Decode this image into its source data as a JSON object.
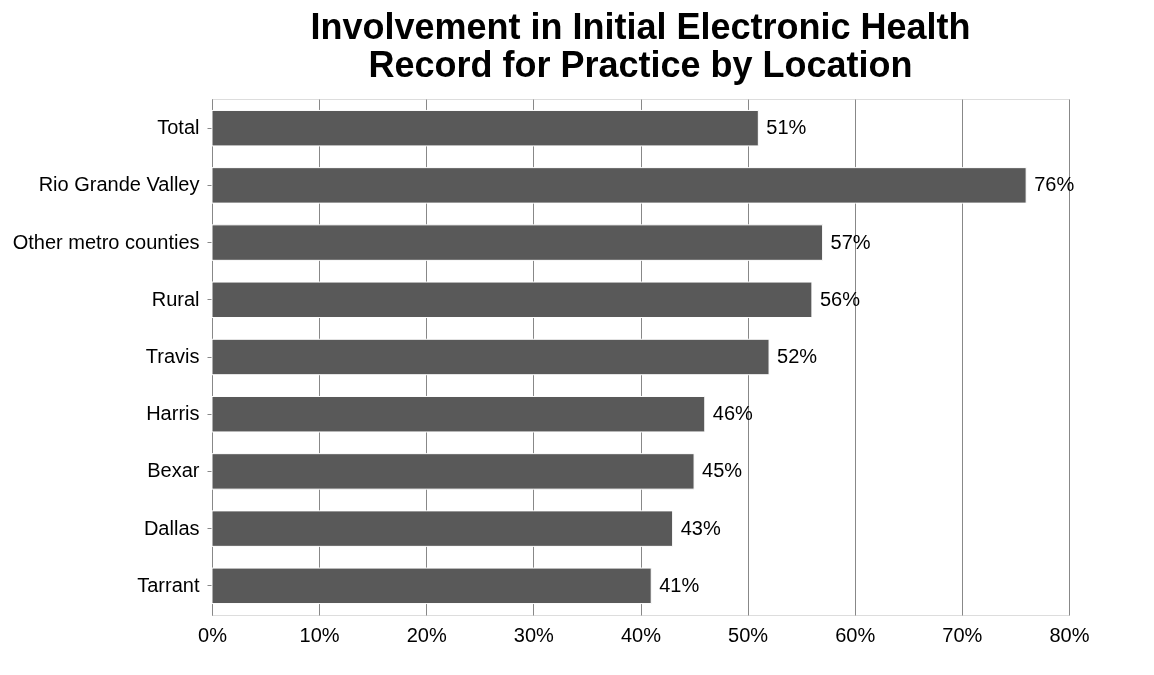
{
  "chart_data": {
    "type": "bar",
    "orientation": "horizontal",
    "title": "Involvement in Initial Electronic Health Record for Practice by Location",
    "categories": [
      "Total",
      "Rio Grande Valley",
      "Other metro counties",
      "Rural",
      "Travis",
      "Harris",
      "Bexar",
      "Dallas",
      "Tarrant"
    ],
    "values": [
      51,
      76,
      57,
      56,
      52,
      46,
      45,
      43,
      41
    ],
    "value_labels": [
      "51%",
      "76%",
      "57%",
      "56%",
      "52%",
      "46%",
      "45%",
      "43%",
      "41%"
    ],
    "color": "#595959",
    "xlim": [
      0,
      80
    ],
    "xticks": [
      {
        "value": 0,
        "label": "0%"
      },
      {
        "value": 10,
        "label": "10%"
      },
      {
        "value": 20,
        "label": "20%"
      },
      {
        "value": 30,
        "label": "30%"
      },
      {
        "value": 40,
        "label": "40%"
      },
      {
        "value": 50,
        "label": "50%"
      },
      {
        "value": 60,
        "label": "60%"
      },
      {
        "value": 70,
        "label": "70%"
      },
      {
        "value": 80,
        "label": "80%"
      }
    ],
    "grid": "x"
  }
}
